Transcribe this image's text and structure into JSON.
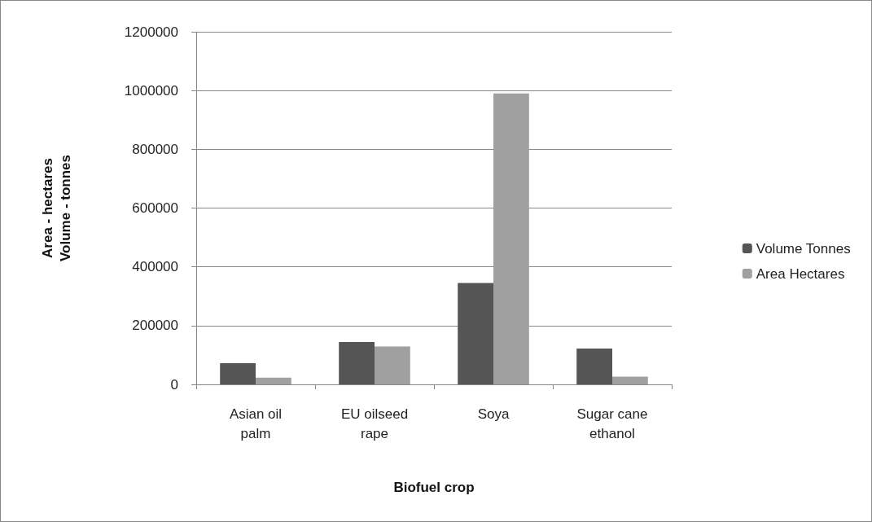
{
  "chart_data": {
    "type": "bar",
    "xlabel": "Biofuel crop",
    "ylabel": "Area - hectares\nVolume - tonnes",
    "categories": [
      "Asian oil\npalm",
      "EU oilseed\nrape",
      "Soya",
      "Sugar cane\nethanol"
    ],
    "series": [
      {
        "name": "Volume Tonnes",
        "color": "#555555",
        "values": [
          72000,
          144000,
          345000,
          122000
        ]
      },
      {
        "name": "Area Hectares",
        "color": "#a0a0a0",
        "values": [
          23000,
          129000,
          990000,
          26000
        ]
      }
    ],
    "ylim": [
      0,
      1200000
    ],
    "yticks": [
      0,
      200000,
      400000,
      600000,
      800000,
      1000000,
      1200000
    ],
    "grid": "y",
    "legend": "right"
  }
}
